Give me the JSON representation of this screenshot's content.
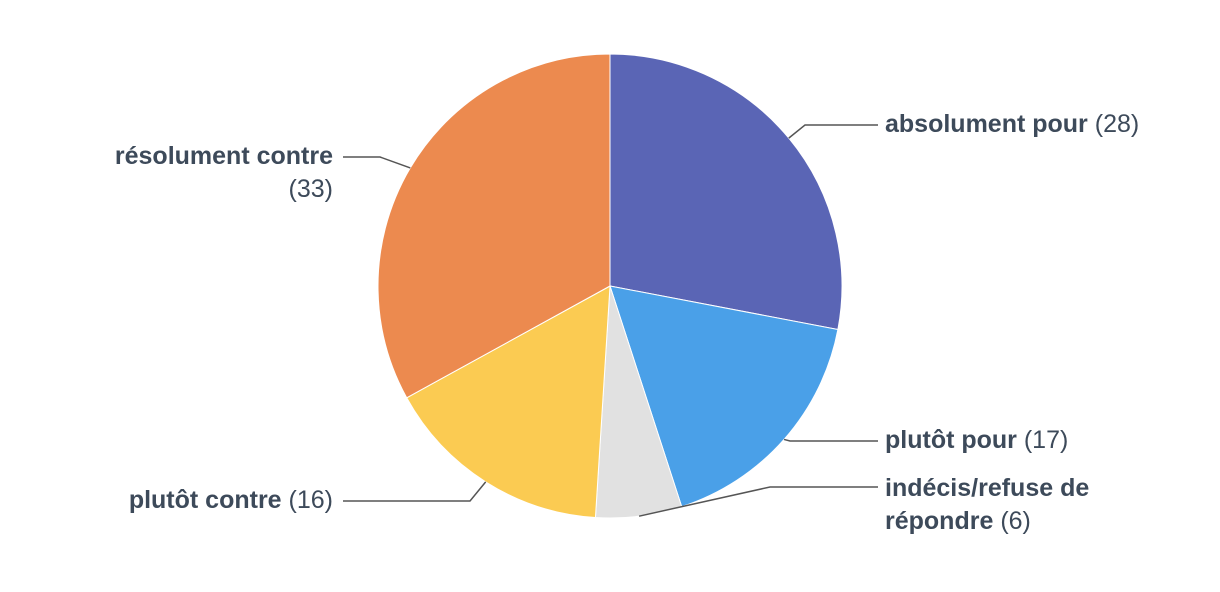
{
  "chart_data": {
    "type": "pie",
    "categories": [
      "absolument pour",
      "plutôt pour",
      "indécis/refuse de répondre",
      "plutôt contre",
      "résolument contre"
    ],
    "values": [
      28,
      17,
      6,
      16,
      33
    ],
    "value_labels": [
      "(28)",
      "(17)",
      "(6)",
      "(16)",
      "(33)"
    ],
    "colors": [
      "#5a65b5",
      "#4aa0e8",
      "#e1e1e1",
      "#fbcb52",
      "#ec8a4f"
    ]
  }
}
